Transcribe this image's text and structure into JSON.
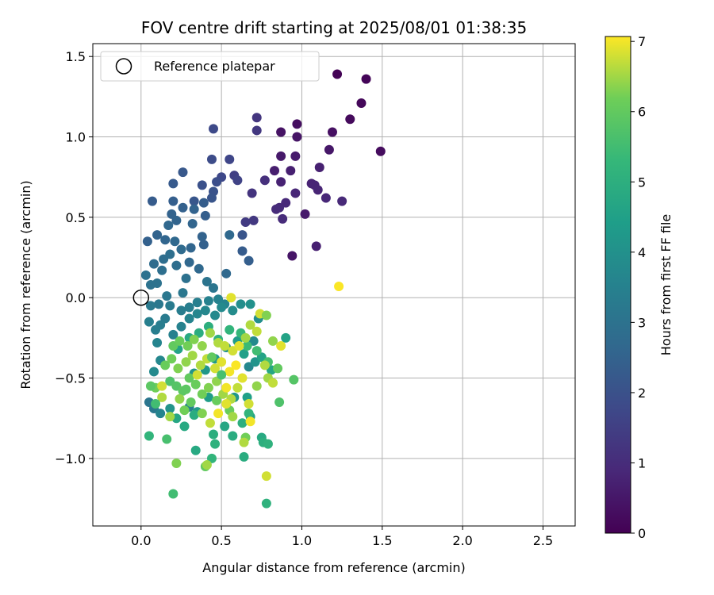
{
  "chart_data": {
    "type": "scatter",
    "title": "FOV centre drift starting at 2025/08/01 01:38:35",
    "xlabel": "Angular distance from reference (arcmin)",
    "ylabel": "Rotation from reference (arcmin)",
    "xlim": [
      -0.3,
      2.7
    ],
    "ylim": [
      -1.42,
      1.58
    ],
    "xticks": [
      0.0,
      0.5,
      1.0,
      1.5,
      2.0,
      2.5
    ],
    "xtick_labels": [
      "0.0",
      "0.5",
      "1.0",
      "1.5",
      "2.0",
      "2.5"
    ],
    "yticks": [
      -1.0,
      -0.5,
      0.0,
      0.5,
      1.0,
      1.5
    ],
    "ytick_labels": [
      "−1.0",
      "−0.5",
      "0.0",
      "0.5",
      "1.0",
      "1.5"
    ],
    "grid": true,
    "legend": {
      "position": "top-left",
      "entries": [
        {
          "label": "Reference platepar",
          "marker": "open-circle",
          "x": 0,
          "y": 0
        }
      ]
    },
    "colorbar": {
      "label": "Hours from first FF file",
      "colormap": "viridis",
      "range": [
        0,
        7.07
      ],
      "ticks": [
        0,
        1,
        2,
        3,
        4,
        5,
        6,
        7
      ],
      "tick_labels": [
        "0",
        "1",
        "2",
        "3",
        "4",
        "5",
        "6",
        "7"
      ]
    },
    "points": [
      [
        1.22,
        1.39,
        0.05
      ],
      [
        1.4,
        1.36,
        0.1
      ],
      [
        1.37,
        1.21,
        0.15
      ],
      [
        1.3,
        1.11,
        0.2
      ],
      [
        1.49,
        0.91,
        0.25
      ],
      [
        0.97,
        1.08,
        0.3
      ],
      [
        1.19,
        1.03,
        0.35
      ],
      [
        0.87,
        1.03,
        0.4
      ],
      [
        0.97,
        1.0,
        0.45
      ],
      [
        1.17,
        0.92,
        0.5
      ],
      [
        0.87,
        0.88,
        0.55
      ],
      [
        0.96,
        0.88,
        0.6
      ],
      [
        0.83,
        0.79,
        0.65
      ],
      [
        0.93,
        0.79,
        0.7
      ],
      [
        1.11,
        0.81,
        0.72
      ],
      [
        0.87,
        0.72,
        0.75
      ],
      [
        1.06,
        0.71,
        0.78
      ],
      [
        1.08,
        0.7,
        0.8
      ],
      [
        1.1,
        0.67,
        0.82
      ],
      [
        0.96,
        0.65,
        0.85
      ],
      [
        1.15,
        0.62,
        0.88
      ],
      [
        1.25,
        0.6,
        0.9
      ],
      [
        0.9,
        0.59,
        0.92
      ],
      [
        0.86,
        0.56,
        0.95
      ],
      [
        0.84,
        0.55,
        0.98
      ],
      [
        0.94,
        0.26,
        0.45
      ],
      [
        1.02,
        0.52,
        0.6
      ],
      [
        1.09,
        0.32,
        0.7
      ],
      [
        0.88,
        0.49,
        1.0
      ],
      [
        0.72,
        1.12,
        1.25
      ],
      [
        0.72,
        1.04,
        1.3
      ],
      [
        0.45,
        1.05,
        1.8
      ],
      [
        0.77,
        0.73,
        1.1
      ],
      [
        0.69,
        0.65,
        1.2
      ],
      [
        0.7,
        0.48,
        1.3
      ],
      [
        0.65,
        0.47,
        1.4
      ],
      [
        0.58,
        0.76,
        1.5
      ],
      [
        0.6,
        0.73,
        1.6
      ],
      [
        0.55,
        0.86,
        1.7
      ],
      [
        0.5,
        0.75,
        1.75
      ],
      [
        0.44,
        0.86,
        1.85
      ],
      [
        0.47,
        0.72,
        1.9
      ],
      [
        0.38,
        0.7,
        2.0
      ],
      [
        0.45,
        0.66,
        2.05
      ],
      [
        0.44,
        0.62,
        2.1
      ],
      [
        0.33,
        0.6,
        2.15
      ],
      [
        0.26,
        0.78,
        2.2
      ],
      [
        0.2,
        0.71,
        2.25
      ],
      [
        0.07,
        0.6,
        2.3
      ],
      [
        0.2,
        0.6,
        2.4
      ],
      [
        0.19,
        0.52,
        2.5
      ],
      [
        0.22,
        0.48,
        2.55
      ],
      [
        0.26,
        0.56,
        2.45
      ],
      [
        0.33,
        0.55,
        2.5
      ],
      [
        0.39,
        0.59,
        2.35
      ],
      [
        0.4,
        0.51,
        2.4
      ],
      [
        0.32,
        0.46,
        2.6
      ],
      [
        0.17,
        0.45,
        2.65
      ],
      [
        0.21,
        0.35,
        2.7
      ],
      [
        0.25,
        0.3,
        2.75
      ],
      [
        0.1,
        0.39,
        2.55
      ],
      [
        0.04,
        0.35,
        2.45
      ],
      [
        0.15,
        0.36,
        2.6
      ],
      [
        0.38,
        0.38,
        2.5
      ],
      [
        0.39,
        0.33,
        2.45
      ],
      [
        0.31,
        0.31,
        2.6
      ],
      [
        0.55,
        0.39,
        2.7
      ],
      [
        0.63,
        0.39,
        2.1
      ],
      [
        0.63,
        0.29,
        2.3
      ],
      [
        0.67,
        0.23,
        2.4
      ],
      [
        0.53,
        0.15,
        2.7
      ],
      [
        0.08,
        0.21,
        2.8
      ],
      [
        0.14,
        0.24,
        2.85
      ],
      [
        0.18,
        0.27,
        2.9
      ],
      [
        0.13,
        0.17,
        2.9
      ],
      [
        0.03,
        0.14,
        2.95
      ],
      [
        0.06,
        0.08,
        3.0
      ],
      [
        0.1,
        0.09,
        3.0
      ],
      [
        0.22,
        0.2,
        2.85
      ],
      [
        0.28,
        0.12,
        2.95
      ],
      [
        0.3,
        0.22,
        2.65
      ],
      [
        0.36,
        0.18,
        2.7
      ],
      [
        0.41,
        0.1,
        3.05
      ],
      [
        0.45,
        0.06,
        3.1
      ],
      [
        0.26,
        0.03,
        3.15
      ],
      [
        0.16,
        0.01,
        3.15
      ],
      [
        0.11,
        -0.04,
        3.2
      ],
      [
        0.06,
        -0.05,
        3.25
      ],
      [
        0.18,
        -0.05,
        3.3
      ],
      [
        0.25,
        -0.08,
        3.35
      ],
      [
        0.3,
        -0.06,
        3.4
      ],
      [
        0.35,
        -0.03,
        3.45
      ],
      [
        0.42,
        -0.02,
        3.5
      ],
      [
        0.48,
        -0.01,
        3.55
      ],
      [
        0.52,
        -0.04,
        3.6
      ],
      [
        0.15,
        -0.13,
        3.3
      ],
      [
        0.12,
        -0.17,
        3.35
      ],
      [
        0.09,
        -0.2,
        3.4
      ],
      [
        0.05,
        -0.15,
        3.45
      ],
      [
        0.2,
        -0.23,
        3.5
      ],
      [
        0.25,
        -0.18,
        3.55
      ],
      [
        0.3,
        -0.13,
        3.6
      ],
      [
        0.35,
        -0.1,
        3.65
      ],
      [
        0.4,
        -0.08,
        3.7
      ],
      [
        0.46,
        -0.11,
        3.75
      ],
      [
        0.5,
        -0.06,
        3.8
      ],
      [
        0.57,
        -0.08,
        3.85
      ],
      [
        0.62,
        -0.04,
        3.9
      ],
      [
        0.68,
        -0.04,
        4.0
      ],
      [
        0.73,
        -0.13,
        3.9
      ],
      [
        0.7,
        -0.27,
        3.8
      ],
      [
        0.67,
        -0.43,
        3.7
      ],
      [
        0.1,
        -0.28,
        3.6
      ],
      [
        0.12,
        -0.39,
        3.7
      ],
      [
        0.08,
        -0.46,
        3.8
      ],
      [
        0.05,
        -0.65,
        3.1
      ],
      [
        0.08,
        -0.69,
        3.2
      ],
      [
        0.12,
        -0.72,
        3.6
      ],
      [
        0.18,
        -0.69,
        4.1
      ],
      [
        0.3,
        -0.68,
        3.5
      ],
      [
        0.35,
        -0.71,
        4.3
      ],
      [
        0.42,
        -0.62,
        4.4
      ],
      [
        0.58,
        -0.62,
        4.2
      ],
      [
        0.66,
        -0.62,
        4.5
      ],
      [
        0.68,
        -0.74,
        4.6
      ],
      [
        0.22,
        -0.75,
        4.7
      ],
      [
        0.27,
        -0.8,
        4.8
      ],
      [
        0.33,
        -0.73,
        4.9
      ],
      [
        0.45,
        -0.85,
        5.0
      ],
      [
        0.46,
        -0.91,
        5.1
      ],
      [
        0.52,
        -0.8,
        4.7
      ],
      [
        0.57,
        -0.86,
        4.9
      ],
      [
        0.63,
        -0.78,
        5.0
      ],
      [
        0.67,
        -0.72,
        5.2
      ],
      [
        0.75,
        -0.87,
        4.8
      ],
      [
        0.76,
        -0.9,
        5.0
      ],
      [
        0.79,
        -0.91,
        5.1
      ],
      [
        0.34,
        -0.95,
        4.8
      ],
      [
        0.44,
        -1.0,
        5.2
      ],
      [
        0.64,
        -0.99,
        4.9
      ],
      [
        0.78,
        -1.28,
        5.1
      ],
      [
        0.33,
        -0.47,
        4.1
      ],
      [
        0.4,
        -0.45,
        4.2
      ],
      [
        0.46,
        -0.38,
        4.3
      ],
      [
        0.53,
        -0.31,
        4.0
      ],
      [
        0.6,
        -0.27,
        4.4
      ],
      [
        0.64,
        -0.35,
        4.5
      ],
      [
        0.71,
        -0.4,
        4.1
      ],
      [
        0.75,
        -0.37,
        4.6
      ],
      [
        0.81,
        -0.45,
        4.7
      ],
      [
        0.23,
        -0.32,
        4.6
      ],
      [
        0.3,
        -0.25,
        4.8
      ],
      [
        0.36,
        -0.22,
        4.9
      ],
      [
        0.42,
        -0.18,
        5.0
      ],
      [
        0.48,
        -0.26,
        5.1
      ],
      [
        0.55,
        -0.2,
        5.2
      ],
      [
        0.62,
        -0.22,
        5.3
      ],
      [
        0.66,
        -0.3,
        5.4
      ],
      [
        0.72,
        -0.33,
        5.5
      ],
      [
        0.79,
        -0.4,
        5.6
      ],
      [
        0.86,
        -0.65,
        5.7
      ],
      [
        0.95,
        -0.51,
        5.8
      ],
      [
        0.85,
        -0.44,
        6.0
      ],
      [
        0.9,
        -0.25,
        4.6
      ],
      [
        0.16,
        -0.88,
        5.6
      ],
      [
        0.05,
        -0.86,
        5.2
      ],
      [
        0.2,
        -1.22,
        5.5
      ],
      [
        0.4,
        -1.05,
        6.0
      ],
      [
        0.18,
        -0.52,
        5.7
      ],
      [
        0.22,
        -0.55,
        5.8
      ],
      [
        0.26,
        -0.58,
        5.9
      ],
      [
        0.3,
        -0.5,
        6.0
      ],
      [
        0.34,
        -0.54,
        6.1
      ],
      [
        0.38,
        -0.6,
        6.2
      ],
      [
        0.42,
        -0.56,
        6.3
      ],
      [
        0.47,
        -0.52,
        6.4
      ],
      [
        0.51,
        -0.6,
        6.5
      ],
      [
        0.56,
        -0.63,
        6.6
      ],
      [
        0.6,
        -0.56,
        6.7
      ],
      [
        0.15,
        -0.42,
        6.1
      ],
      [
        0.19,
        -0.38,
        6.2
      ],
      [
        0.23,
        -0.44,
        6.3
      ],
      [
        0.28,
        -0.4,
        6.4
      ],
      [
        0.32,
        -0.36,
        6.5
      ],
      [
        0.37,
        -0.42,
        6.6
      ],
      [
        0.41,
        -0.38,
        6.7
      ],
      [
        0.46,
        -0.44,
        6.8
      ],
      [
        0.5,
        -0.4,
        6.9
      ],
      [
        0.55,
        -0.46,
        7.0
      ],
      [
        0.59,
        -0.42,
        7.05
      ],
      [
        0.63,
        -0.5,
        6.9
      ],
      [
        0.2,
        -0.3,
        6.0
      ],
      [
        0.24,
        -0.27,
        6.1
      ],
      [
        0.29,
        -0.3,
        6.2
      ],
      [
        0.33,
        -0.26,
        6.3
      ],
      [
        0.38,
        -0.3,
        6.4
      ],
      [
        0.43,
        -0.22,
        6.5
      ],
      [
        0.48,
        -0.28,
        6.6
      ],
      [
        0.52,
        -0.3,
        6.7
      ],
      [
        0.57,
        -0.33,
        6.8
      ],
      [
        0.61,
        -0.3,
        6.9
      ],
      [
        0.65,
        -0.25,
        6.5
      ],
      [
        0.68,
        -0.17,
        6.6
      ],
      [
        0.72,
        -0.21,
        6.7
      ],
      [
        0.74,
        -0.1,
        6.8
      ],
      [
        0.78,
        -0.11,
        6.3
      ],
      [
        0.82,
        -0.27,
        6.4
      ],
      [
        0.87,
        -0.3,
        6.9
      ],
      [
        0.77,
        -0.42,
        6.6
      ],
      [
        0.79,
        -0.5,
        6.5
      ],
      [
        0.72,
        -0.55,
        6.4
      ],
      [
        0.67,
        -0.66,
        6.8
      ],
      [
        0.65,
        -0.87,
        6.2
      ],
      [
        0.64,
        -0.9,
        6.6
      ],
      [
        0.68,
        -0.77,
        7.0
      ],
      [
        0.55,
        -0.7,
        6.1
      ],
      [
        0.57,
        -0.74,
        6.5
      ],
      [
        0.53,
        -0.66,
        6.9
      ],
      [
        0.48,
        -0.72,
        7.0
      ],
      [
        0.43,
        -0.78,
        6.7
      ],
      [
        0.38,
        -0.72,
        6.3
      ],
      [
        0.31,
        -0.65,
        6.0
      ],
      [
        0.27,
        -0.7,
        6.2
      ],
      [
        0.24,
        -0.63,
        6.4
      ],
      [
        0.18,
        -0.74,
        6.5
      ],
      [
        0.13,
        -0.62,
        6.6
      ],
      [
        0.09,
        -0.56,
        6.2
      ],
      [
        0.06,
        -0.55,
        5.9
      ],
      [
        0.09,
        -0.66,
        5.5
      ],
      [
        0.13,
        -0.55,
        6.8
      ],
      [
        0.56,
        0.0,
        6.9
      ],
      [
        0.82,
        -0.53,
        6.7
      ],
      [
        1.23,
        0.07,
        7.05
      ],
      [
        0.78,
        -1.11,
        6.8
      ],
      [
        0.22,
        -1.03,
        6.3
      ],
      [
        0.41,
        -1.04,
        6.5
      ],
      [
        0.44,
        -0.37,
        6.0
      ],
      [
        0.5,
        -0.48,
        5.6
      ],
      [
        0.35,
        -0.48,
        6.8
      ],
      [
        0.28,
        -0.57,
        5.9
      ],
      [
        0.53,
        -0.56,
        7.0
      ],
      [
        0.47,
        -0.64,
        6.1
      ]
    ]
  }
}
